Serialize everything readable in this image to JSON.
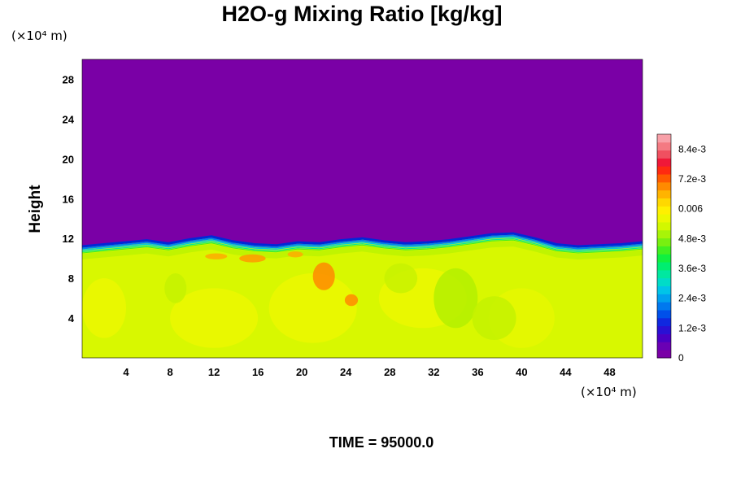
{
  "chart_data": {
    "type": "heatmap",
    "title": "H2O-g Mixing Ratio [kg/kg]",
    "ylabel": "Height",
    "xlabel": "",
    "x_unit": "(×10⁴ m)",
    "y_unit": "(×10⁴ m)",
    "xlim": [
      0,
      51
    ],
    "ylim": [
      0,
      30
    ],
    "x_ticks": [
      4,
      8,
      12,
      16,
      20,
      24,
      28,
      32,
      36,
      40,
      44,
      48
    ],
    "y_ticks": [
      4,
      8,
      12,
      16,
      20,
      24,
      28
    ],
    "colorbar": {
      "range": [
        0,
        0.009
      ],
      "ticks": [
        {
          "value": 0,
          "label": "0"
        },
        {
          "value": 0.0012,
          "label": "1.2e-3"
        },
        {
          "value": 0.0024,
          "label": "2.4e-3"
        },
        {
          "value": 0.0036,
          "label": "3.6e-3"
        },
        {
          "value": 0.0048,
          "label": "4.8e-3"
        },
        {
          "value": 0.006,
          "label": "0.006"
        },
        {
          "value": 0.0072,
          "label": "7.2e-3"
        },
        {
          "value": 0.0084,
          "label": "8.4e-3"
        }
      ],
      "colors": [
        "#7a00a6",
        "#6a00b4",
        "#4a00c4",
        "#2a10d4",
        "#1028e0",
        "#0050ea",
        "#0078ee",
        "#00a0ee",
        "#00c4e8",
        "#00dcc8",
        "#00e8a0",
        "#00ee70",
        "#10f040",
        "#40f020",
        "#78f010",
        "#a8f408",
        "#d2f800",
        "#ecf800",
        "#fff000",
        "#ffd800",
        "#ffb400",
        "#ff8a00",
        "#ff5a00",
        "#ff2a10",
        "#f01838",
        "#f05060",
        "#f47a82",
        "#f8a0a8"
      ]
    },
    "moist_layer_top_height": [
      11.2,
      11.4,
      11.6,
      11.8,
      11.5,
      11.9,
      12.2,
      11.7,
      11.4,
      11.3,
      11.6,
      11.5,
      11.8,
      12.0,
      11.7,
      11.5,
      11.6,
      11.8,
      12.1,
      12.4,
      12.5,
      12.0,
      11.4,
      11.2,
      11.3,
      11.4,
      11.6
    ],
    "regions": [
      {
        "name": "dry upper layer",
        "value": 0
      },
      {
        "name": "moist lower layer",
        "value": 0.0062
      }
    ]
  },
  "footer": {
    "time_label": "TIME = 95000.0"
  }
}
